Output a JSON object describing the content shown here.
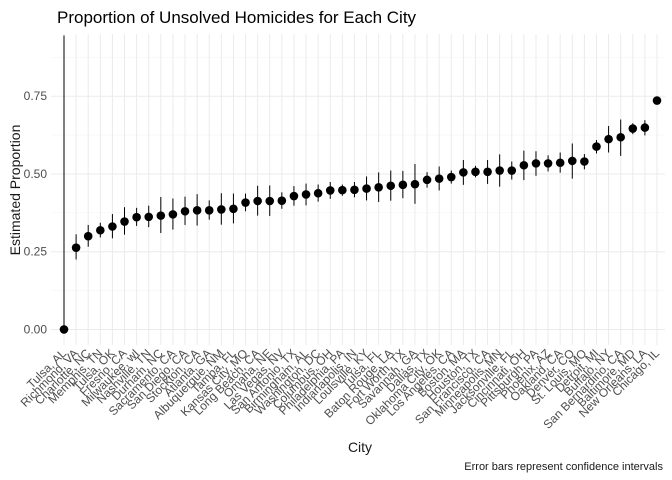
{
  "chart_data": {
    "type": "scatter",
    "title": "Proportion of Unsolved Homicides for Each City",
    "xlabel": "City",
    "ylabel": "Estimated Proportion",
    "caption": "Error bars represent confidence intervals",
    "ylim": [
      -0.05,
      0.95
    ],
    "yticks": [
      0.0,
      0.25,
      0.5,
      0.75
    ],
    "ytick_labels": [
      "0.00",
      "0.25",
      "0.50",
      "0.75"
    ],
    "grid": true,
    "legend": "none",
    "points": [
      {
        "city": "Tulsa, AL",
        "estimate": 0.0,
        "lower": 0.0,
        "upper": 0.945
      },
      {
        "city": "Richmond, VA",
        "estimate": 0.263,
        "lower": 0.225,
        "upper": 0.306
      },
      {
        "city": "Charlotte, NC",
        "estimate": 0.3,
        "lower": 0.266,
        "upper": 0.336
      },
      {
        "city": "Memphis, TN",
        "estimate": 0.319,
        "lower": 0.296,
        "upper": 0.343
      },
      {
        "city": "Tulsa, OK",
        "estimate": 0.331,
        "lower": 0.293,
        "upper": 0.371
      },
      {
        "city": "Fresno, CA",
        "estimate": 0.347,
        "lower": 0.305,
        "upper": 0.393
      },
      {
        "city": "Milwaukee, wI",
        "estimate": 0.361,
        "lower": 0.333,
        "upper": 0.391
      },
      {
        "city": "Nashville, TN",
        "estimate": 0.362,
        "lower": 0.329,
        "upper": 0.398
      },
      {
        "city": "Durham, NC",
        "estimate": 0.366,
        "lower": 0.31,
        "upper": 0.426
      },
      {
        "city": "Sacramento, CA",
        "estimate": 0.37,
        "lower": 0.321,
        "upper": 0.421
      },
      {
        "city": "San Diego, CA",
        "estimate": 0.38,
        "lower": 0.336,
        "upper": 0.427
      },
      {
        "city": "Stockton, CA",
        "estimate": 0.383,
        "lower": 0.334,
        "upper": 0.435
      },
      {
        "city": "Atlanta, GA",
        "estimate": 0.383,
        "lower": 0.353,
        "upper": 0.415
      },
      {
        "city": "Albuquerque, NM",
        "estimate": 0.386,
        "lower": 0.337,
        "upper": 0.438
      },
      {
        "city": "Tampa, FL",
        "estimate": 0.388,
        "lower": 0.341,
        "upper": 0.437
      },
      {
        "city": "Kansas City, MO",
        "estimate": 0.408,
        "lower": 0.38,
        "upper": 0.437
      },
      {
        "city": "Long Beach, CA",
        "estimate": 0.413,
        "lower": 0.366,
        "upper": 0.462
      },
      {
        "city": "Omaha, NE",
        "estimate": 0.413,
        "lower": 0.365,
        "upper": 0.463
      },
      {
        "city": "Las Vegas, NV",
        "estimate": 0.414,
        "lower": 0.388,
        "upper": 0.441
      },
      {
        "city": "San Antonio, TX",
        "estimate": 0.429,
        "lower": 0.398,
        "upper": 0.461
      },
      {
        "city": "Birmingham, AL",
        "estimate": 0.434,
        "lower": 0.399,
        "upper": 0.469
      },
      {
        "city": "Washington, DC",
        "estimate": 0.438,
        "lower": 0.411,
        "upper": 0.466
      },
      {
        "city": "Columbus, OH",
        "estimate": 0.447,
        "lower": 0.42,
        "upper": 0.474
      },
      {
        "city": "Philadelphia, PA",
        "estimate": 0.448,
        "lower": 0.43,
        "upper": 0.466
      },
      {
        "city": "Indianapolis, IN",
        "estimate": 0.449,
        "lower": 0.425,
        "upper": 0.474
      },
      {
        "city": "Louisville, KY",
        "estimate": 0.453,
        "lower": 0.415,
        "upper": 0.492
      },
      {
        "city": "Tulsa, FL",
        "estimate": 0.457,
        "lower": 0.41,
        "upper": 0.505
      },
      {
        "city": "Baton Rouge, LA",
        "estimate": 0.462,
        "lower": 0.414,
        "upper": 0.511
      },
      {
        "city": "Fort Worth, TX",
        "estimate": 0.465,
        "lower": 0.422,
        "upper": 0.51
      },
      {
        "city": "Savannah, GA",
        "estimate": 0.467,
        "lower": 0.404,
        "upper": 0.532
      },
      {
        "city": "Dallas, TX",
        "estimate": 0.481,
        "lower": 0.456,
        "upper": 0.506
      },
      {
        "city": "Oklahoma City, OK",
        "estimate": 0.485,
        "lower": 0.447,
        "upper": 0.524
      },
      {
        "city": "Los Angeles, CA",
        "estimate": 0.49,
        "lower": 0.469,
        "upper": 0.511
      },
      {
        "city": "Boston, MA",
        "estimate": 0.505,
        "lower": 0.465,
        "upper": 0.545
      },
      {
        "city": "Houston, TX",
        "estimate": 0.507,
        "lower": 0.489,
        "upper": 0.526
      },
      {
        "city": "San Francisco, CA",
        "estimate": 0.507,
        "lower": 0.468,
        "upper": 0.545
      },
      {
        "city": "Minneapolis, MN",
        "estimate": 0.511,
        "lower": 0.459,
        "upper": 0.563
      },
      {
        "city": "Jacksonville, FL",
        "estimate": 0.511,
        "lower": 0.482,
        "upper": 0.54
      },
      {
        "city": "Cincinnati, OH",
        "estimate": 0.528,
        "lower": 0.48,
        "upper": 0.575
      },
      {
        "city": "Pittsburgh, PA",
        "estimate": 0.534,
        "lower": 0.494,
        "upper": 0.573
      },
      {
        "city": "Phoenix, AZ",
        "estimate": 0.534,
        "lower": 0.508,
        "upper": 0.56
      },
      {
        "city": "Oakland, CA",
        "estimate": 0.536,
        "lower": 0.504,
        "upper": 0.569
      },
      {
        "city": "Denver, CO",
        "estimate": 0.542,
        "lower": 0.485,
        "upper": 0.598
      },
      {
        "city": "St. Louis, MO",
        "estimate": 0.54,
        "lower": 0.515,
        "upper": 0.564
      },
      {
        "city": "Detroit, MI",
        "estimate": 0.588,
        "lower": 0.566,
        "upper": 0.609
      },
      {
        "city": "Buffalo, NY",
        "estimate": 0.612,
        "lower": 0.569,
        "upper": 0.654
      },
      {
        "city": "San Bernardino, CA",
        "estimate": 0.618,
        "lower": 0.558,
        "upper": 0.675
      },
      {
        "city": "Baltimore, MD",
        "estimate": 0.646,
        "lower": 0.628,
        "upper": 0.663
      },
      {
        "city": "New Orleans, LA",
        "estimate": 0.649,
        "lower": 0.624,
        "upper": 0.673
      },
      {
        "city": "Chicago, IL",
        "estimate": 0.736,
        "lower": 0.724,
        "upper": 0.747
      }
    ]
  }
}
